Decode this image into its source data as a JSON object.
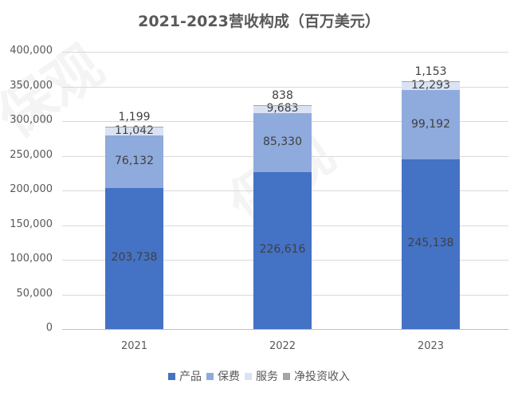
{
  "title": "2021-2023营收构成（百万美元）",
  "colors": {
    "产品": "#4472c4",
    "保费": "#8faadc",
    "服务": "#dae3f3",
    "净投资收入": "#a5a5a5"
  },
  "y_ticks": [
    "400,000",
    "350,000",
    "300,000",
    "250,000",
    "200,000",
    "150,000",
    "100,000",
    "50,000",
    "0"
  ],
  "x_ticks": [
    "2021",
    "2022",
    "2023"
  ],
  "legend": [
    "产品",
    "保费",
    "服务",
    "净投资收入"
  ],
  "labels": {
    "2021": [
      "203,738",
      "76,132",
      "11,042",
      "1,199"
    ],
    "2022": [
      "226,616",
      "85,330",
      "9,683",
      "838"
    ],
    "2023": [
      "245,138",
      "99,192",
      "12,293",
      "1,153"
    ]
  },
  "chart_data": {
    "type": "bar",
    "stacked": true,
    "title": "2021-2023营收构成（百万美元）",
    "categories": [
      "2021",
      "2022",
      "2023"
    ],
    "series": [
      {
        "name": "产品",
        "values": [
          203738,
          226616,
          245138
        ]
      },
      {
        "name": "保费",
        "values": [
          76132,
          85330,
          99192
        ]
      },
      {
        "name": "服务",
        "values": [
          11042,
          9683,
          12293
        ]
      },
      {
        "name": "净投资收入",
        "values": [
          1199,
          838,
          1153
        ]
      }
    ],
    "xlabel": "",
    "ylabel": "",
    "ylim": [
      0,
      400000
    ],
    "grid": true,
    "legend_position": "bottom"
  }
}
